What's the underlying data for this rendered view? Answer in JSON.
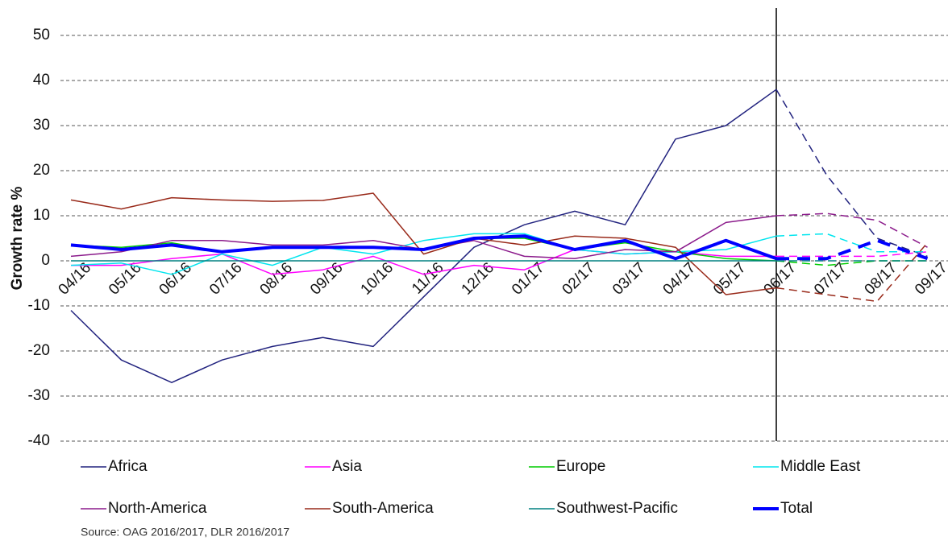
{
  "chart_data": {
    "type": "line",
    "y_label": "Growth rate %",
    "source": "Source: OAG 2016/2017, DLR 2016/2017",
    "categories": [
      "04/16",
      "05/16",
      "06/16",
      "07/16",
      "08/16",
      "09/16",
      "10/16",
      "11/16",
      "12/16",
      "01/17",
      "02/17",
      "03/17",
      "04/17",
      "05/17",
      "06/17",
      "07/17",
      "08/17",
      "09/17"
    ],
    "series": [
      {
        "name": "Africa",
        "color": "#22237f",
        "width": 1.5,
        "values": [
          -11,
          -22,
          -27,
          -22,
          -19,
          -17,
          -19,
          -8,
          3,
          8,
          11,
          8,
          27,
          30,
          38,
          19,
          5,
          1
        ]
      },
      {
        "name": "Asia",
        "color": "#ff00ff",
        "width": 1.5,
        "values": [
          -1,
          -1,
          0.5,
          1.5,
          -3,
          -2,
          1,
          -3,
          -1,
          -2,
          2.5,
          1.5,
          2,
          1,
          1,
          1,
          1,
          2
        ]
      },
      {
        "name": "Europe",
        "color": "#00cc00",
        "width": 1.5,
        "values": [
          3.5,
          3,
          4,
          2,
          3,
          3,
          3,
          2.5,
          5,
          5,
          2.5,
          4,
          2,
          0.5,
          0,
          -1,
          0,
          0
        ]
      },
      {
        "name": "Middle East",
        "color": "#00e5ee",
        "width": 1.5,
        "values": [
          -1,
          -0.5,
          -3,
          1.5,
          -1,
          3,
          1.5,
          4.5,
          6,
          6,
          2.5,
          1.5,
          2,
          2.5,
          5.5,
          6,
          2,
          2
        ]
      },
      {
        "name": "North-America",
        "color": "#8b1a8b",
        "width": 1.5,
        "values": [
          1,
          2,
          4.5,
          4.5,
          3.5,
          3.5,
          4.5,
          2.5,
          4.5,
          1,
          0.5,
          2.5,
          2,
          8.5,
          10,
          10.5,
          9,
          3
        ]
      },
      {
        "name": "South-America",
        "color": "#992a1a",
        "width": 1.5,
        "values": [
          13.5,
          11.5,
          14,
          13.5,
          13.2,
          13.4,
          15,
          1.5,
          5,
          3.5,
          5.5,
          5,
          3,
          -7.5,
          -6,
          -7.5,
          -9,
          4
        ]
      },
      {
        "name": "Southwest-Pacific",
        "color": "#008080",
        "width": 1.5,
        "values": [
          0,
          0,
          0,
          0,
          0,
          0,
          0,
          0,
          0,
          0,
          0,
          0,
          0,
          0,
          0,
          0,
          0,
          0
        ]
      },
      {
        "name": "Total",
        "color": "#0000ff",
        "width": 4,
        "values": [
          3.5,
          2.5,
          3.5,
          2,
          3,
          3,
          3,
          2.5,
          5,
          5.5,
          2.5,
          4.5,
          0.5,
          4.5,
          0.5,
          0.5,
          4.5,
          0.5
        ]
      }
    ],
    "vline_at": "06/17",
    "ylim": [
      -40,
      50
    ],
    "yticks": [
      -40,
      -30,
      -20,
      -10,
      0,
      10,
      20,
      30,
      40,
      50
    ],
    "grid": true
  }
}
